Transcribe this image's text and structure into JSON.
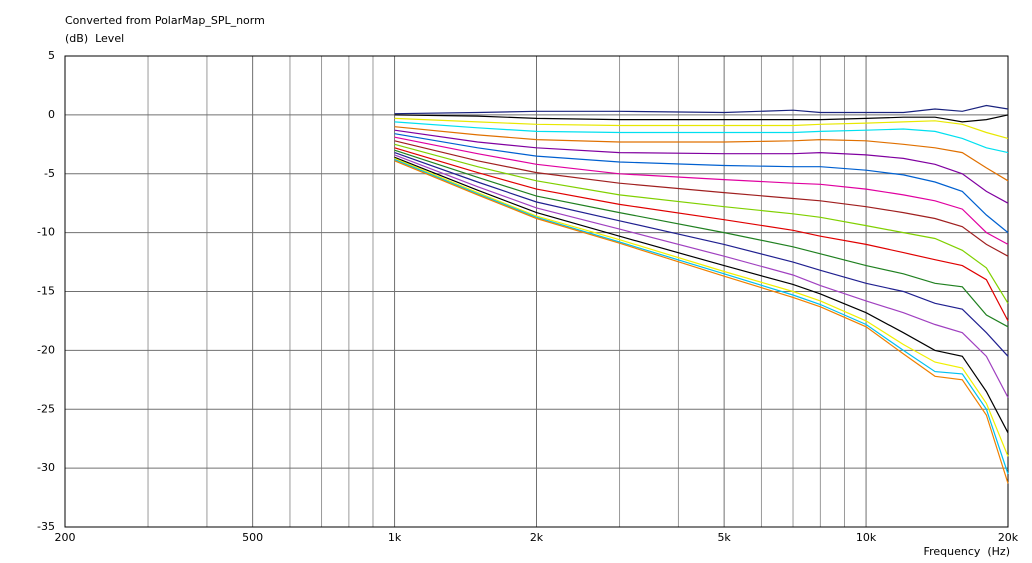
{
  "chart_data": {
    "type": "line",
    "title": "Converted from PolarMap_SPL_norm",
    "y_label": "(dB)  Level",
    "x_label": "Frequency  (Hz)",
    "log_x": true,
    "grid": true,
    "xlim": [
      200,
      20000
    ],
    "ylim": [
      -35,
      5
    ],
    "xticks": [
      200,
      500,
      {
        "value": 1000,
        "label": "1k"
      },
      {
        "value": 2000,
        "label": "2k"
      },
      {
        "value": 5000,
        "label": "5k"
      },
      {
        "value": 10000,
        "label": "10k"
      },
      {
        "value": 20000,
        "label": "20k"
      }
    ],
    "x_minor_grid": [
      300,
      400,
      600,
      700,
      800,
      900,
      3000,
      4000,
      6000,
      7000,
      8000,
      9000
    ],
    "yticks": [
      5,
      0,
      -5,
      -10,
      -15,
      -20,
      -25,
      -30,
      -35
    ],
    "x": [
      1000,
      1500,
      2000,
      3000,
      5000,
      7000,
      8000,
      10000,
      12000,
      14000,
      16000,
      18000,
      20000
    ],
    "series": [
      {
        "color": "#1a237e",
        "values": [
          0.1,
          0.2,
          0.3,
          0.3,
          0.2,
          0.4,
          0.2,
          0.2,
          0.2,
          0.5,
          0.3,
          0.8,
          0.5
        ]
      },
      {
        "color": "#000000",
        "values": [
          0,
          -0.1,
          -0.3,
          -0.4,
          -0.4,
          -0.4,
          -0.4,
          -0.3,
          -0.2,
          -0.2,
          -0.6,
          -0.4,
          0
        ]
      },
      {
        "color": "#e8e800",
        "values": [
          -0.3,
          -0.6,
          -0.8,
          -0.9,
          -0.9,
          -0.9,
          -0.8,
          -0.7,
          -0.6,
          -0.5,
          -0.8,
          -1.5,
          -2
        ]
      },
      {
        "color": "#00e0f0",
        "values": [
          -0.6,
          -1.1,
          -1.4,
          -1.5,
          -1.5,
          -1.5,
          -1.4,
          -1.3,
          -1.2,
          -1.4,
          -2,
          -2.8,
          -3.2
        ]
      },
      {
        "color": "#e07000",
        "values": [
          -1,
          -1.7,
          -2.1,
          -2.3,
          -2.3,
          -2.2,
          -2.1,
          -2.2,
          -2.5,
          -2.8,
          -3.2,
          -4.5,
          -5.6
        ]
      },
      {
        "color": "#8000a0",
        "values": [
          -1.3,
          -2.3,
          -2.8,
          -3.2,
          -3.3,
          -3.3,
          -3.2,
          -3.4,
          -3.7,
          -4.2,
          -5,
          -6.5,
          -7.5
        ]
      },
      {
        "color": "#0060d0",
        "values": [
          -1.6,
          -2.8,
          -3.5,
          -4,
          -4.3,
          -4.4,
          -4.4,
          -4.7,
          -5.1,
          -5.7,
          -6.5,
          -8.5,
          -10
        ]
      },
      {
        "color": "#e000a0",
        "values": [
          -1.9,
          -3.3,
          -4.2,
          -5,
          -5.5,
          -5.8,
          -5.9,
          -6.3,
          -6.8,
          -7.3,
          -8,
          -10,
          -11
        ]
      },
      {
        "color": "#a02020",
        "values": [
          -2.2,
          -3.9,
          -4.9,
          -5.8,
          -6.6,
          -7.1,
          -7.3,
          -7.8,
          -8.3,
          -8.8,
          -9.5,
          -11,
          -12
        ]
      },
      {
        "color": "#80d000",
        "values": [
          -2.5,
          -4.4,
          -5.6,
          -6.8,
          -7.8,
          -8.4,
          -8.7,
          -9.4,
          -10,
          -10.5,
          -11.5,
          -13,
          -16
        ]
      },
      {
        "color": "#e00000",
        "values": [
          -2.8,
          -4.9,
          -6.3,
          -7.6,
          -8.9,
          -9.8,
          -10.3,
          -11,
          -11.7,
          -12.3,
          -12.8,
          -14,
          -17.5
        ]
      },
      {
        "color": "#208020",
        "values": [
          -3,
          -5.3,
          -6.9,
          -8.3,
          -10,
          -11.2,
          -11.8,
          -12.8,
          -13.5,
          -14.3,
          -14.6,
          -17,
          -18
        ]
      },
      {
        "color": "#202090",
        "values": [
          -3.2,
          -5.7,
          -7.4,
          -9,
          -11,
          -12.5,
          -13.2,
          -14.3,
          -15,
          -16,
          -16.5,
          -18.5,
          -20.5
        ]
      },
      {
        "color": "#a040c0",
        "values": [
          -3.4,
          -6.1,
          -7.9,
          -9.7,
          -12,
          -13.6,
          -14.5,
          -15.8,
          -16.8,
          -17.8,
          -18.5,
          -20.5,
          -24
        ]
      },
      {
        "color": "#000000",
        "values": [
          -3.6,
          -6.4,
          -8.3,
          -10.3,
          -12.8,
          -14.4,
          -15.2,
          -16.8,
          -18.5,
          -20,
          -20.5,
          -23.5,
          -27
        ]
      },
      {
        "color": "#f0f000",
        "values": [
          -3.7,
          -6.6,
          -8.6,
          -10.6,
          -13.3,
          -15,
          -15.8,
          -17.5,
          -19.5,
          -21,
          -21.5,
          -24.5,
          -29
        ]
      },
      {
        "color": "#00c0f0",
        "values": [
          -3.8,
          -6.7,
          -8.7,
          -10.8,
          -13.5,
          -15.3,
          -16.1,
          -17.8,
          -20,
          -21.8,
          -22,
          -25,
          -30.5
        ]
      },
      {
        "color": "#f08000",
        "values": [
          -3.9,
          -6.8,
          -8.8,
          -10.9,
          -13.7,
          -15.5,
          -16.3,
          -18,
          -20.3,
          -22.2,
          -22.5,
          -25.5,
          -31.3
        ]
      }
    ]
  }
}
